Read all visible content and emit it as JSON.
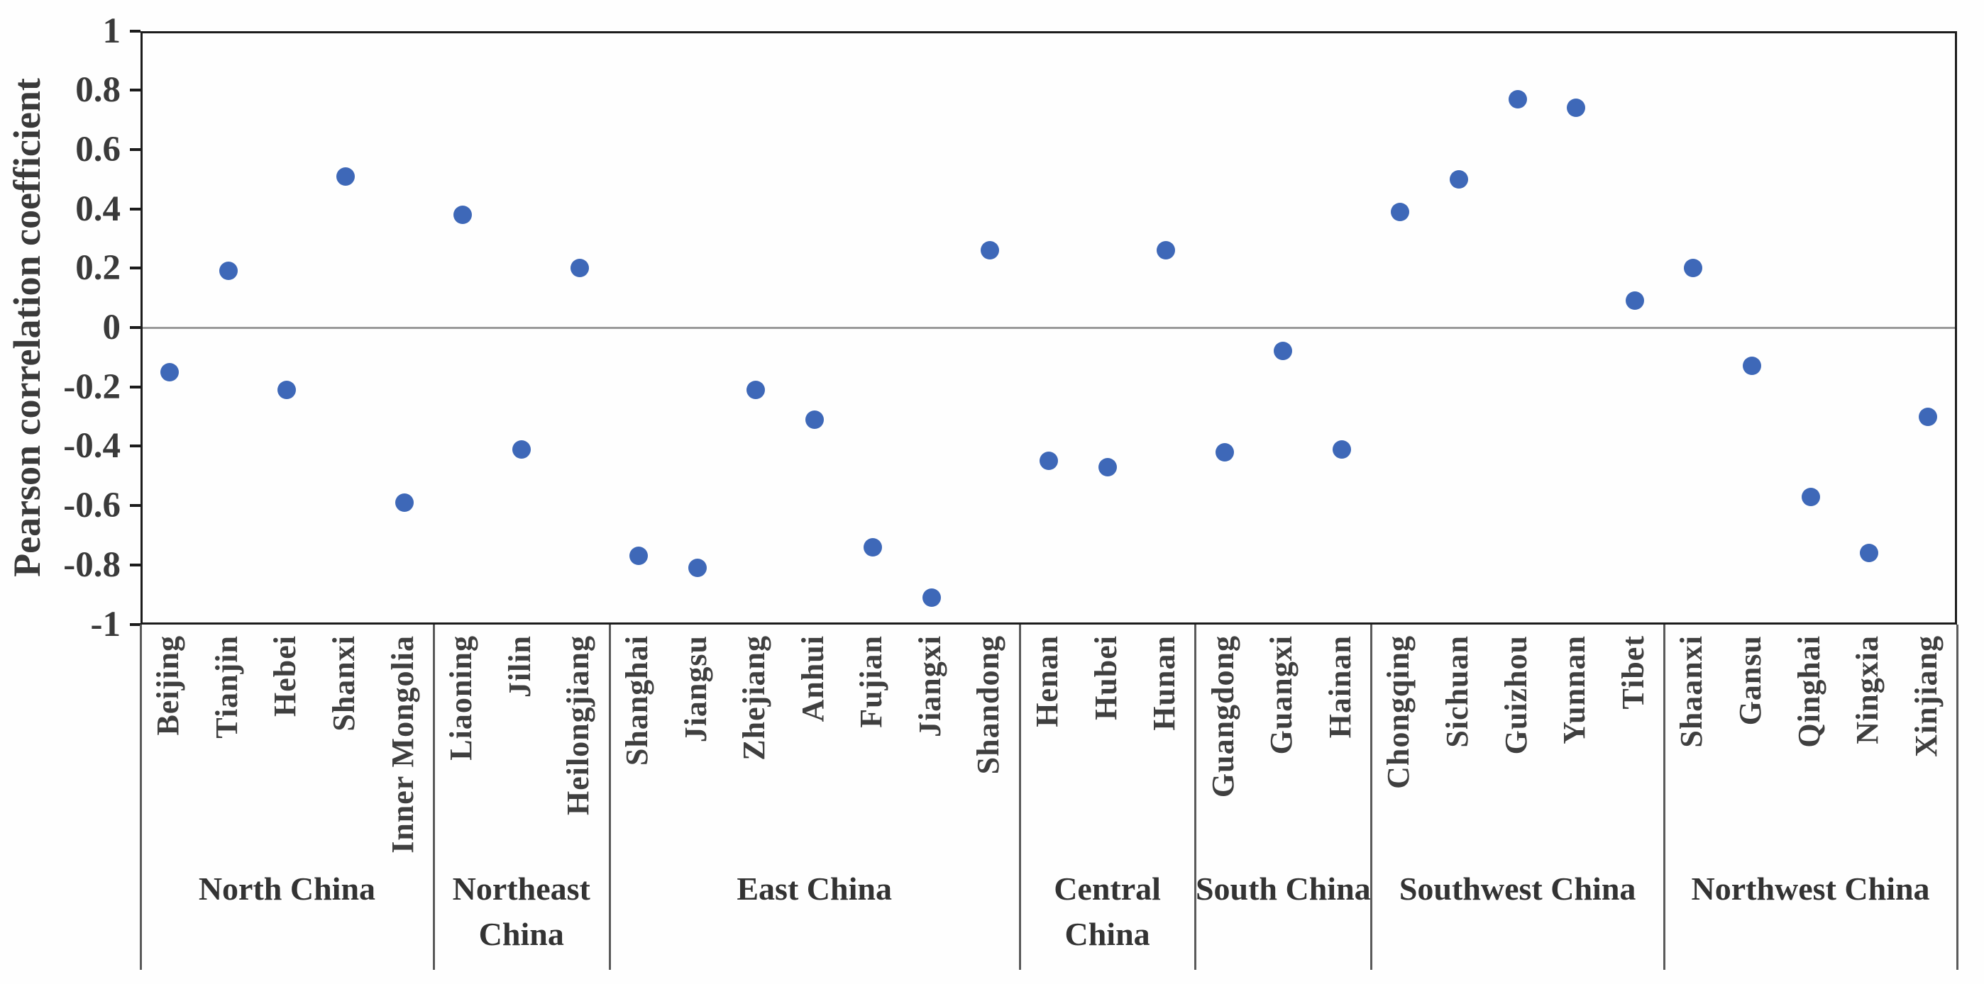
{
  "colors": {
    "dot": "#3E68B8",
    "axis": "#1c1c1c",
    "zero_line": "#9a9a9a",
    "separator": "#5a5a5a",
    "text": "#3a3a3a"
  },
  "chart_data": {
    "type": "scatter",
    "title": "",
    "xlabel": "",
    "ylabel": "Pearson correlation coefficient",
    "ylim": [
      -1,
      1
    ],
    "y_tick_labels": [
      "1",
      "0.8",
      "0.6",
      "0.4",
      "0.2",
      "0",
      "-0.2",
      "-0.4",
      "-0.6",
      "-0.8",
      "-1"
    ],
    "y_tick_values": [
      1,
      0.8,
      0.6,
      0.4,
      0.2,
      0,
      -0.2,
      -0.4,
      -0.6,
      -0.8,
      -1
    ],
    "grid": "zero-line-only",
    "legend": "none",
    "marker": "filled-circle",
    "groups": [
      {
        "label": "North China",
        "label_lines": [
          "North China"
        ],
        "points": [
          {
            "name": "Beijing",
            "value": -0.15
          },
          {
            "name": "Tianjin",
            "value": 0.19
          },
          {
            "name": "Hebei",
            "value": -0.21
          },
          {
            "name": "Shanxi",
            "value": 0.51
          },
          {
            "name": "Inner Mongolia",
            "value": -0.59
          }
        ]
      },
      {
        "label": "Northeast China",
        "label_lines": [
          "Northeast",
          "China"
        ],
        "points": [
          {
            "name": "Liaoning",
            "value": 0.38
          },
          {
            "name": "Jilin",
            "value": -0.41
          },
          {
            "name": "Heilongjiang",
            "value": 0.2
          }
        ]
      },
      {
        "label": "East China",
        "label_lines": [
          "East China"
        ],
        "points": [
          {
            "name": "Shanghai",
            "value": -0.77
          },
          {
            "name": "Jiangsu",
            "value": -0.81
          },
          {
            "name": "Zhejiang",
            "value": -0.21
          },
          {
            "name": "Anhui",
            "value": -0.31
          },
          {
            "name": "Fujian",
            "value": -0.74
          },
          {
            "name": "Jiangxi",
            "value": -0.91
          },
          {
            "name": "Shandong",
            "value": 0.26
          }
        ]
      },
      {
        "label": "Central China",
        "label_lines": [
          "Central",
          "China"
        ],
        "points": [
          {
            "name": "Henan",
            "value": -0.45
          },
          {
            "name": "Hubei",
            "value": -0.47
          },
          {
            "name": "Hunan",
            "value": 0.26
          }
        ]
      },
      {
        "label": "South China",
        "label_lines": [
          "South China"
        ],
        "points": [
          {
            "name": "Guangdong",
            "value": -0.42
          },
          {
            "name": "Guangxi",
            "value": -0.08
          },
          {
            "name": "Hainan",
            "value": -0.41
          }
        ]
      },
      {
        "label": "Southwest China",
        "label_lines": [
          "Southwest China"
        ],
        "points": [
          {
            "name": "Chongqing",
            "value": 0.39
          },
          {
            "name": "Sichuan",
            "value": 0.5
          },
          {
            "name": "Guizhou",
            "value": 0.77
          },
          {
            "name": "Yunnan",
            "value": 0.74
          },
          {
            "name": "Tibet",
            "value": 0.09
          }
        ]
      },
      {
        "label": "Northwest China",
        "label_lines": [
          "Northwest China"
        ],
        "points": [
          {
            "name": "Shaanxi",
            "value": 0.2
          },
          {
            "name": "Gansu",
            "value": -0.13
          },
          {
            "name": "Qinghai",
            "value": -0.57
          },
          {
            "name": "Ningxia",
            "value": -0.76
          },
          {
            "name": "Xinjiang",
            "value": -0.3
          }
        ]
      }
    ]
  }
}
